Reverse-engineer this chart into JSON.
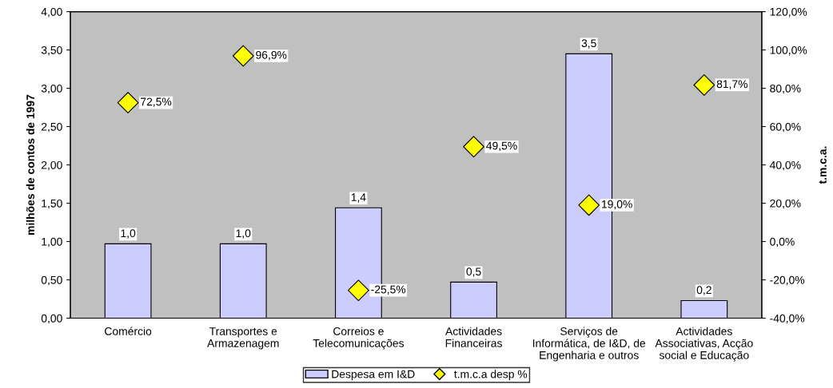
{
  "chart_data": {
    "type": "bar",
    "categories": [
      "Comércio",
      "Transportes e\nArmazenagem",
      "Correios e\nTelecomunicações",
      "Actividades\nFinanceiras",
      "Serviços de\nInformática, de I&D, de\nEngenharia e outros",
      "Actividades\nAssociativas, Acção\nsocial e Educação"
    ],
    "ylabel": "milhões de contos de 1997",
    "y2label": "t.m.c.a.",
    "ylim": [
      0,
      4
    ],
    "yticks": [
      {
        "value": 0,
        "label": "0,00"
      },
      {
        "value": 0.5,
        "label": "0,50"
      },
      {
        "value": 1,
        "label": "1,00"
      },
      {
        "value": 1.5,
        "label": "1,50"
      },
      {
        "value": 2,
        "label": "2,00"
      },
      {
        "value": 2.5,
        "label": "2,50"
      },
      {
        "value": 3,
        "label": "3,00"
      },
      {
        "value": 3.5,
        "label": "3,50"
      },
      {
        "value": 4,
        "label": "4,00"
      }
    ],
    "y2lim": [
      -40,
      120
    ],
    "y2ticks": [
      {
        "value": -40,
        "label": "-40,0%"
      },
      {
        "value": -20,
        "label": "-20,0%"
      },
      {
        "value": 0,
        "label": "0,0%"
      },
      {
        "value": 20,
        "label": "20,0%"
      },
      {
        "value": 40,
        "label": "40,0%"
      },
      {
        "value": 60,
        "label": "60,0%"
      },
      {
        "value": 80,
        "label": "80,0%"
      },
      {
        "value": 100,
        "label": "100,0%"
      },
      {
        "value": 120,
        "label": "120,0%"
      }
    ],
    "series": [
      {
        "name": "Despesa em I&D",
        "color": "#ccccff",
        "values": [
          0.97,
          0.97,
          1.44,
          0.47,
          3.45,
          0.23
        ],
        "value_labels": [
          "1,0",
          "1,0",
          "1,4",
          "0,5",
          "3,5",
          "0,2"
        ]
      },
      {
        "name": "t.m.c.a desp %",
        "type": "scatter",
        "axis": "y2",
        "color": "#ffff00",
        "marker": "diamond",
        "values": [
          72.5,
          96.9,
          -25.5,
          49.5,
          19.0,
          81.7
        ],
        "value_labels": [
          "72,5%",
          "96,9%",
          "-25,5%",
          "49,5%",
          "19,0%",
          "81,7%"
        ]
      }
    ],
    "grid": false,
    "legend": "bottom"
  }
}
